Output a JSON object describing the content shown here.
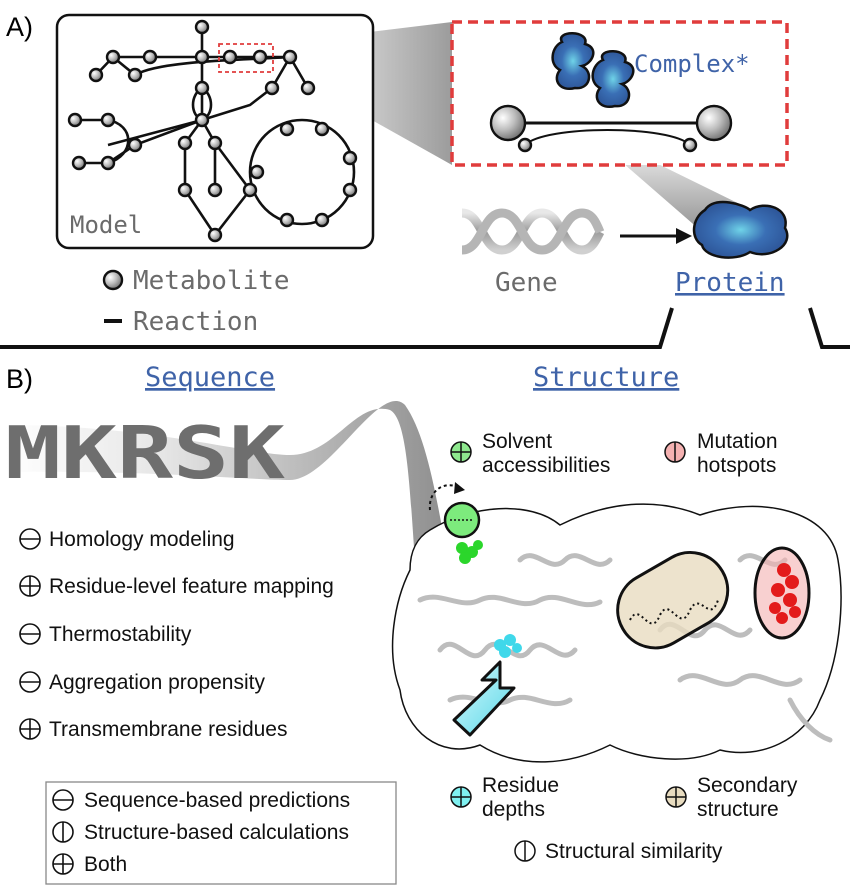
{
  "panel_a": {
    "label": "A)",
    "model_label": "Model",
    "complex_label": "Complex*",
    "gene_label": "Gene",
    "protein_label": "Protein",
    "legend": {
      "metabolite": "Metabolite",
      "reaction": "Reaction"
    }
  },
  "panel_b": {
    "label": "B)",
    "sequence_heading": "Sequence",
    "structure_heading": "Structure",
    "sequence_letters": "MKRSK",
    "features": [
      {
        "icon": "sequence",
        "text": "Homology modeling"
      },
      {
        "icon": "both",
        "text": "Residue-level feature mapping"
      },
      {
        "icon": "sequence",
        "text": "Thermostability"
      },
      {
        "icon": "sequence",
        "text": "Aggregation propensity"
      },
      {
        "icon": "both",
        "text": "Transmembrane residues"
      }
    ],
    "legend": [
      {
        "icon": "sequence",
        "text": "Sequence-based predictions"
      },
      {
        "icon": "structure",
        "text": "Structure-based calculations"
      },
      {
        "icon": "both",
        "text": "Both"
      }
    ],
    "structure_features": {
      "solvent": {
        "line1": "Solvent",
        "line2": "accessibilities",
        "color": "#8ee88e"
      },
      "mutation": {
        "line1": "Mutation",
        "line2": "hotspots",
        "color": "#f4b1b1"
      },
      "depths": {
        "line1": "Residue",
        "line2": "depths",
        "color": "#7ff0f0"
      },
      "secondary": {
        "line1": "Secondary",
        "line2": "structure",
        "color": "#e8dcc0"
      },
      "similarity": {
        "text": "Structural similarity"
      }
    }
  },
  "colors": {
    "accent_blue": "#3f63a8",
    "dashed_red": "#e03c3c",
    "protein_blue": "#3a6fb5"
  }
}
